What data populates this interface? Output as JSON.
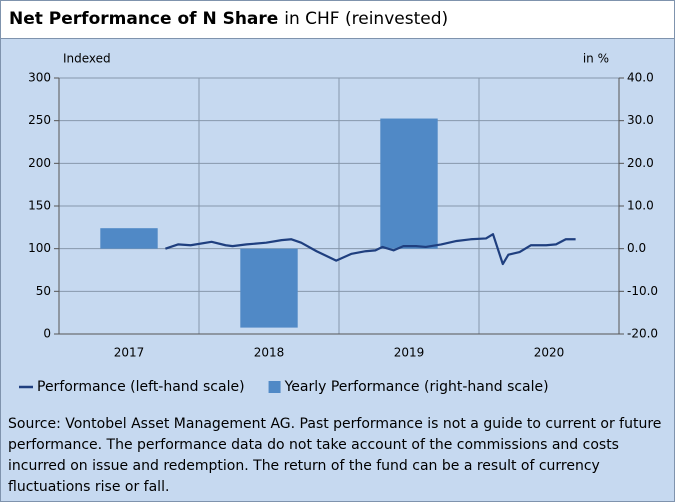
{
  "chart_data": {
    "type": "bar-line",
    "title": "Net Performance of N Share",
    "subtitle": "in CHF (reinvested)",
    "ylabel": "Indexed",
    "y2label": "in %",
    "categories": [
      "2017",
      "2018",
      "2019",
      "2020"
    ],
    "xlim": [
      2017,
      2021
    ],
    "x": [
      2017.76,
      2017.85,
      2017.94,
      2018.09,
      2018.19,
      2018.24,
      2018.34,
      2018.48,
      2018.59,
      2018.66,
      2018.73,
      2018.84,
      2018.98,
      2019.09,
      2019.19,
      2019.26,
      2019.31,
      2019.39,
      2019.46,
      2019.55,
      2019.62,
      2019.73,
      2019.84,
      2019.94,
      2020.05,
      2020.1,
      2020.17,
      2020.21,
      2020.29,
      2020.37,
      2020.48,
      2020.55,
      2020.62,
      2020.69
    ],
    "series": [
      {
        "name": "Performance (left-hand scale)",
        "type": "line",
        "color": "#1f3f7f",
        "values": [
          100,
          105,
          104,
          108,
          104,
          103,
          105,
          107,
          110,
          111,
          107,
          97,
          86,
          94,
          97,
          98,
          102,
          98,
          103,
          103,
          102,
          105,
          109,
          111,
          112,
          117,
          82,
          93,
          96,
          104,
          104,
          105,
          111,
          111
        ]
      },
      {
        "name": "Yearly Performance (right-hand scale)",
        "type": "bar",
        "axis": "y2",
        "color": "#5089c6",
        "values": [
          4.8,
          -18.5,
          30.5,
          null
        ]
      }
    ],
    "ylim": [
      0,
      300
    ],
    "yticks": [
      0,
      50,
      100,
      150,
      200,
      250,
      300
    ],
    "y2lim": [
      -20,
      40
    ],
    "y2ticks": [
      {
        "value": -20,
        "label": "-20.0"
      },
      {
        "value": -10,
        "label": "-10.0"
      },
      {
        "value": 0,
        "label": "0.0"
      },
      {
        "value": 10,
        "label": "10.0"
      },
      {
        "value": 20,
        "label": "20.0"
      },
      {
        "value": 30,
        "label": "30.0"
      },
      {
        "value": 40,
        "label": "40.0"
      }
    ],
    "grid": true,
    "source": "Source: Vontobel Asset Management AG. Past performance is not a guide to current or future performance. The performance data do not take account of the commissions and costs incurred on issue and redemption. The return of the fund can be a result of currency fluctuations rise or fall."
  }
}
